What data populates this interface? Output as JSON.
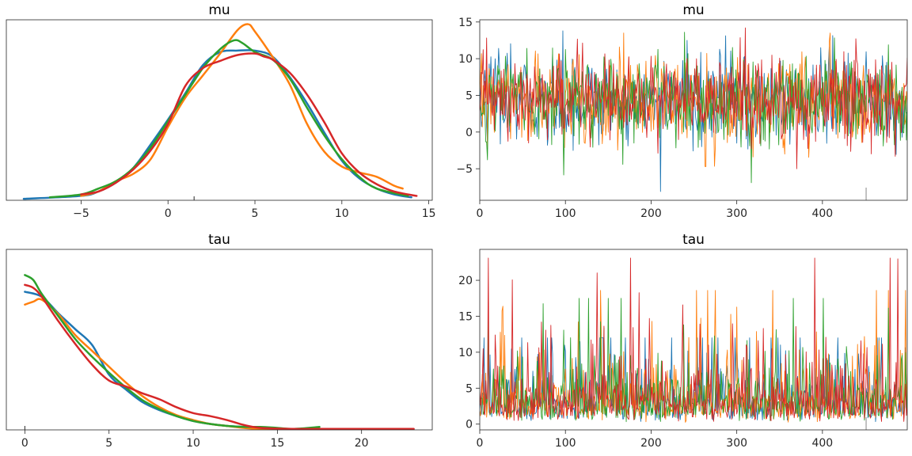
{
  "colors": [
    "#1f77b4",
    "#ff7f0e",
    "#2ca02c",
    "#d62728"
  ],
  "rug_color": "#262626",
  "divergence_color": "#9a9a9a",
  "chart_data": [
    {
      "id": "mu_kde",
      "type": "line",
      "title": "mu",
      "xlim": [
        -9.3,
        15.2
      ],
      "ylim": [
        0,
        0.123
      ],
      "xticks": [
        -5,
        0,
        5,
        10,
        15
      ],
      "xtick_labels": [
        "−5",
        "0",
        "5",
        "10",
        "15"
      ],
      "show_yticks": false,
      "rug_x": [
        1.5
      ],
      "series": [
        {
          "x": [
            -8.3,
            -5,
            -4,
            -3,
            -2,
            -1,
            0,
            1,
            2,
            3,
            4,
            5,
            6,
            7,
            8,
            9,
            10,
            11,
            12,
            13,
            14
          ],
          "y": [
            0.001,
            0.003,
            0.006,
            0.012,
            0.022,
            0.038,
            0.055,
            0.073,
            0.092,
            0.101,
            0.102,
            0.102,
            0.098,
            0.084,
            0.066,
            0.046,
            0.027,
            0.015,
            0.008,
            0.004,
            0.002
          ]
        },
        {
          "x": [
            -5,
            -4,
            -3,
            -2,
            -1,
            0,
            1,
            2,
            3,
            4,
            4.6,
            5,
            6,
            7,
            8,
            9,
            10,
            11,
            12,
            13,
            13.5
          ],
          "y": [
            0.003,
            0.006,
            0.013,
            0.018,
            0.028,
            0.05,
            0.07,
            0.085,
            0.1,
            0.116,
            0.12,
            0.115,
            0.098,
            0.079,
            0.052,
            0.033,
            0.023,
            0.019,
            0.016,
            0.01,
            0.008
          ]
        },
        {
          "x": [
            -6.8,
            -5,
            -4,
            -3,
            -2,
            -1,
            0,
            1,
            2,
            3,
            3.8,
            4.3,
            5,
            6,
            7,
            8,
            9,
            10,
            11,
            12,
            13.8
          ],
          "y": [
            0.002,
            0.004,
            0.008,
            0.013,
            0.022,
            0.036,
            0.054,
            0.072,
            0.09,
            0.103,
            0.109,
            0.107,
            0.101,
            0.096,
            0.083,
            0.063,
            0.044,
            0.028,
            0.016,
            0.008,
            0.003
          ]
        },
        {
          "x": [
            -5,
            -4,
            -3,
            -2,
            -1,
            0,
            1,
            2,
            3,
            4,
            5,
            5.5,
            6,
            7,
            8,
            9,
            10,
            11,
            12,
            13,
            14.3
          ],
          "y": [
            0.004,
            0.006,
            0.012,
            0.021,
            0.034,
            0.052,
            0.078,
            0.09,
            0.095,
            0.099,
            0.1,
            0.098,
            0.096,
            0.087,
            0.072,
            0.053,
            0.032,
            0.019,
            0.011,
            0.006,
            0.003
          ]
        }
      ]
    },
    {
      "id": "mu_trace",
      "type": "line",
      "title": "mu",
      "xlim": [
        0,
        499
      ],
      "ylim": [
        -9.3,
        15.3
      ],
      "xticks": [
        0,
        100,
        200,
        300,
        400
      ],
      "xtick_labels": [
        "0",
        "100",
        "200",
        "300",
        "400"
      ],
      "yticks": [
        -5,
        0,
        5,
        10,
        15
      ],
      "ytick_labels": [
        "−5",
        "0",
        "5",
        "10",
        "15"
      ],
      "n_draws": 500,
      "series_summary": [
        {
          "mean": 4.4,
          "sd": 3.0,
          "min": -8.1,
          "max": 13.8
        },
        {
          "mean": 4.4,
          "sd": 3.0,
          "min": -4.7,
          "max": 13.5
        },
        {
          "mean": 4.4,
          "sd": 3.0,
          "min": -6.9,
          "max": 13.6
        },
        {
          "mean": 4.4,
          "sd": 3.0,
          "min": -5.0,
          "max": 14.2
        }
      ],
      "divergence_x": [
        451
      ]
    },
    {
      "id": "tau_kde",
      "type": "line",
      "title": "tau",
      "xlim": [
        -1.1,
        24.2
      ],
      "ylim": [
        0,
        0.183
      ],
      "xticks": [
        0,
        5,
        10,
        15,
        20
      ],
      "xtick_labels": [
        "0",
        "5",
        "10",
        "15",
        "20"
      ],
      "show_yticks": false,
      "rug_x": [
        0
      ],
      "series": [
        {
          "x": [
            0,
            1,
            2,
            3,
            4,
            5,
            6,
            7,
            8,
            9,
            10,
            11,
            12,
            13,
            14,
            15,
            16,
            17
          ],
          "y": [
            0.14,
            0.135,
            0.118,
            0.102,
            0.086,
            0.056,
            0.041,
            0.028,
            0.02,
            0.014,
            0.009,
            0.006,
            0.004,
            0.003,
            0.002,
            0.001,
            0.001,
            0.001
          ]
        },
        {
          "x": [
            0,
            0.5,
            1,
            2,
            3,
            4,
            5,
            6,
            7,
            8,
            9,
            10,
            11,
            12,
            13,
            14,
            16,
            18.7
          ],
          "y": [
            0.127,
            0.13,
            0.132,
            0.117,
            0.096,
            0.08,
            0.064,
            0.048,
            0.034,
            0.023,
            0.015,
            0.01,
            0.006,
            0.004,
            0.002,
            0.001,
            0.001,
            0.0
          ]
        },
        {
          "x": [
            0,
            0.5,
            1,
            2,
            3,
            4,
            5,
            6,
            7,
            8,
            9,
            10,
            11,
            12,
            13,
            14,
            15,
            16,
            17.5
          ],
          "y": [
            0.157,
            0.152,
            0.138,
            0.115,
            0.092,
            0.074,
            0.058,
            0.043,
            0.03,
            0.021,
            0.014,
            0.009,
            0.006,
            0.004,
            0.003,
            0.003,
            0.002,
            0.001,
            0.003
          ]
        },
        {
          "x": [
            0,
            0.5,
            1,
            2,
            3,
            4,
            5,
            6,
            7,
            8,
            9,
            10,
            11,
            12,
            13,
            14,
            16,
            18,
            20,
            23.1
          ],
          "y": [
            0.147,
            0.144,
            0.135,
            0.11,
            0.087,
            0.066,
            0.05,
            0.044,
            0.037,
            0.031,
            0.023,
            0.017,
            0.014,
            0.01,
            0.005,
            0.002,
            0.001,
            0.001,
            0.001,
            0.001
          ]
        }
      ]
    },
    {
      "id": "tau_trace",
      "type": "line",
      "title": "tau",
      "xlim": [
        0,
        499
      ],
      "ylim": [
        -0.8,
        24.3
      ],
      "xticks": [
        0,
        100,
        200,
        300,
        400
      ],
      "xtick_labels": [
        "0",
        "100",
        "200",
        "300",
        "400"
      ],
      "yticks": [
        0,
        5,
        10,
        15,
        20
      ],
      "ytick_labels": [
        "0",
        "5",
        "10",
        "15",
        "20"
      ],
      "n_draws": 500,
      "series_summary": [
        {
          "median": 3.0,
          "min": 0.2,
          "max": 12.0
        },
        {
          "median": 3.0,
          "min": 0.2,
          "max": 18.6
        },
        {
          "median": 3.0,
          "min": 0.2,
          "max": 17.5
        },
        {
          "median": 3.0,
          "min": 0.2,
          "max": 23.1
        }
      ],
      "divergence_x": [
        451
      ]
    }
  ]
}
